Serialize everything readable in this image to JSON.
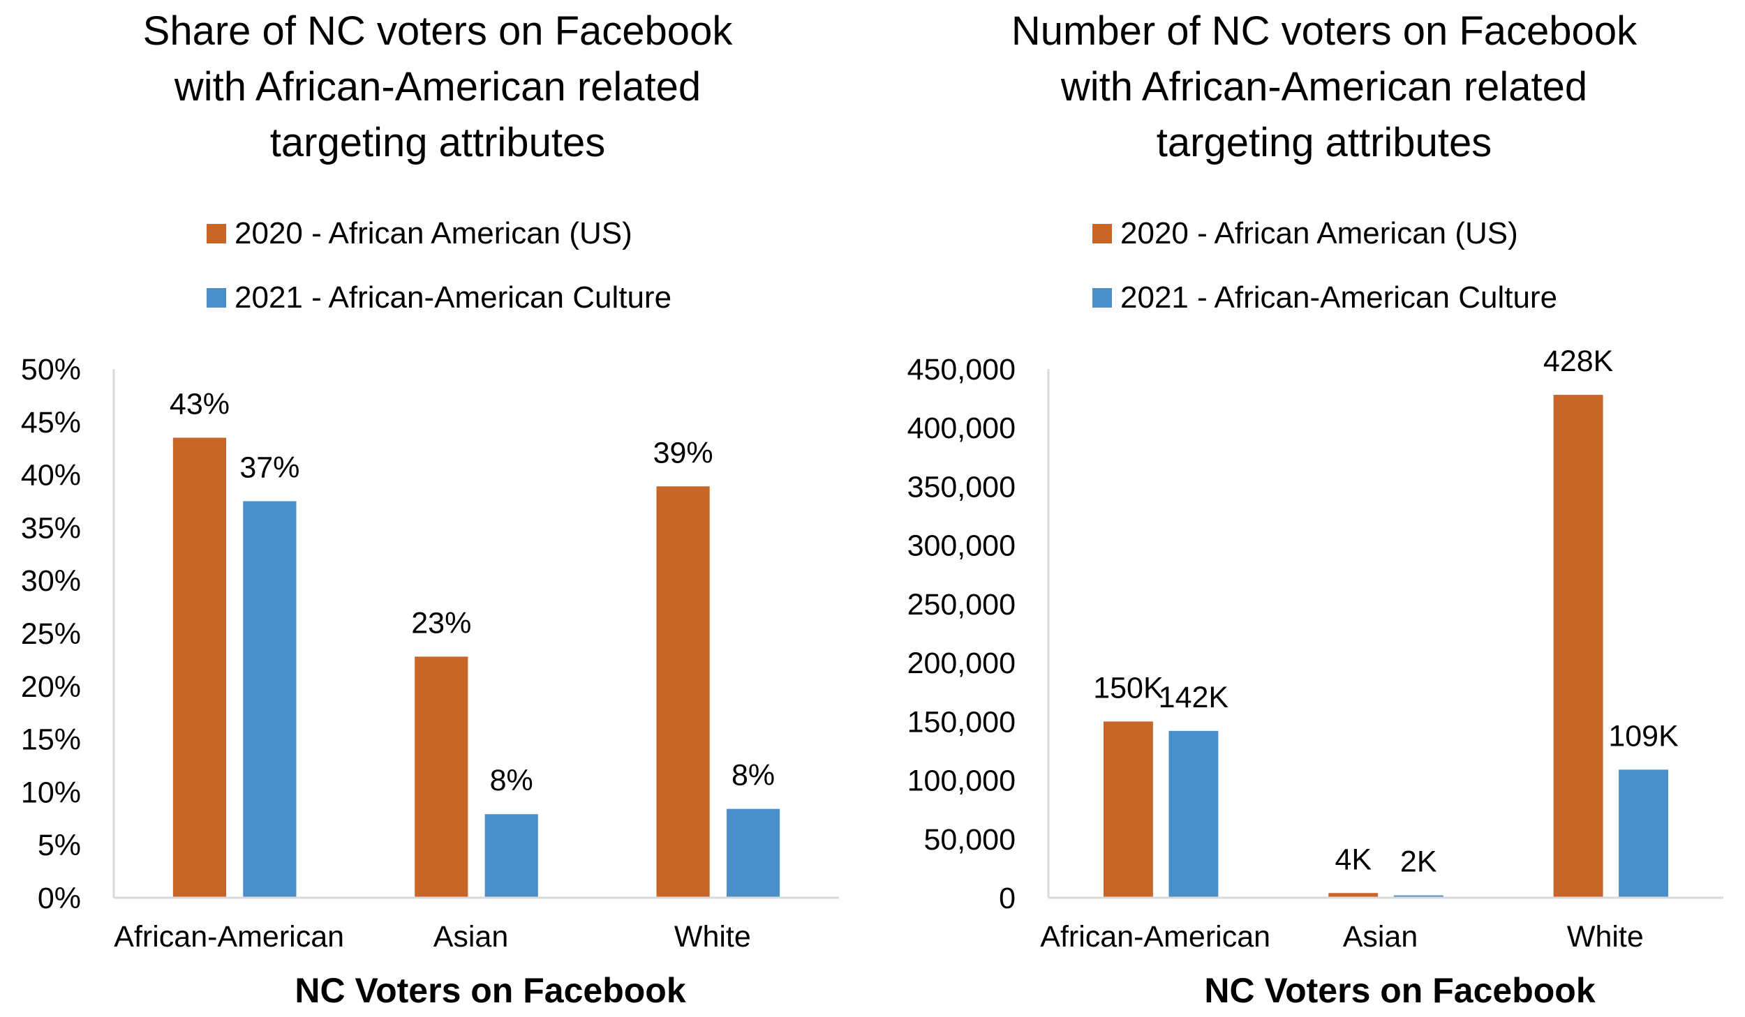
{
  "colors": {
    "series_2020": "#C8662A",
    "series_2021": "#4A8FC9",
    "axis": "#D9D9D9"
  },
  "chart_data": [
    {
      "type": "bar",
      "title": [
        "Share of NC voters on Facebook",
        "with African-American related",
        "targeting attributes"
      ],
      "xlabel": "NC Voters on Facebook",
      "ylabel": "",
      "categories": [
        "African-American",
        "Asian",
        "White"
      ],
      "ylim": [
        0,
        50
      ],
      "yticks": [
        0,
        5,
        10,
        15,
        20,
        25,
        30,
        35,
        40,
        45,
        50
      ],
      "ytick_labels": [
        "0%",
        "5%",
        "10%",
        "15%",
        "20%",
        "25%",
        "30%",
        "35%",
        "40%",
        "45%",
        "50%"
      ],
      "legend_position": "top",
      "grid": false,
      "series": [
        {
          "name": "2020 - African American (US)",
          "values": [
            43.5,
            22.8,
            38.9
          ],
          "labels": [
            "43%",
            "23%",
            "39%"
          ]
        },
        {
          "name": "2021 - African-American Culture",
          "values": [
            37.5,
            7.9,
            8.4
          ],
          "labels": [
            "37%",
            "8%",
            "8%"
          ]
        }
      ]
    },
    {
      "type": "bar",
      "title": [
        "Number of NC voters on Facebook",
        "with African-American related",
        "targeting attributes"
      ],
      "xlabel": "NC Voters on Facebook",
      "ylabel": "",
      "categories": [
        "African-American",
        "Asian",
        "White"
      ],
      "ylim": [
        0,
        450000
      ],
      "yticks": [
        0,
        50000,
        100000,
        150000,
        200000,
        250000,
        300000,
        350000,
        400000,
        450000
      ],
      "ytick_labels": [
        "0",
        "50,000",
        "100,000",
        "150,000",
        "200,000",
        "250,000",
        "300,000",
        "350,000",
        "400,000",
        "450,000"
      ],
      "legend_position": "top",
      "grid": false,
      "series": [
        {
          "name": "2020 - African American (US)",
          "values": [
            150000,
            4000,
            428000
          ],
          "labels": [
            "150K",
            "4K",
            "428K"
          ]
        },
        {
          "name": "2021 - African-American Culture",
          "values": [
            142000,
            2000,
            109000
          ],
          "labels": [
            "142K",
            "2K",
            "109K"
          ]
        }
      ]
    }
  ]
}
